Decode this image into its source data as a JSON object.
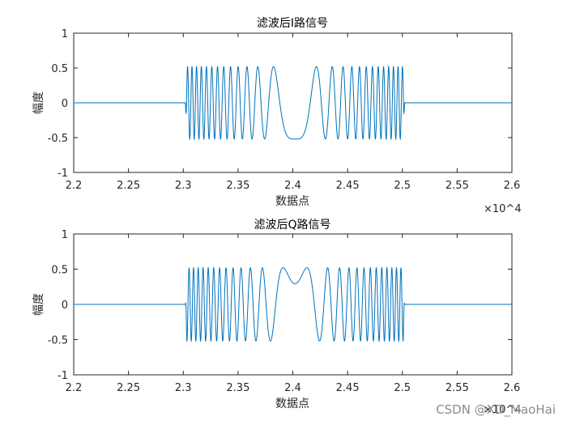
{
  "watermark": "CSDN @XD_MaoHai",
  "chart_data": [
    {
      "type": "line",
      "title": "滤波后I路信号",
      "xlabel": "数据点",
      "ylabel": "幅度",
      "xlim": [
        22000,
        26000
      ],
      "ylim": [
        -1,
        1
      ],
      "x_ticks": [
        22000,
        22500,
        23000,
        23500,
        24000,
        24500,
        25000,
        25500,
        26000
      ],
      "x_tick_labels": [
        "2.2",
        "2.25",
        "2.3",
        "2.35",
        "2.4",
        "2.45",
        "2.5",
        "2.55",
        "2.6"
      ],
      "x_exponent": "×10^4",
      "y_ticks": [
        -1,
        -0.5,
        0,
        0.5,
        1
      ],
      "y_tick_labels": [
        "-1",
        "-0.5",
        "0",
        "0.5",
        "1"
      ],
      "series_color": "#0072BD",
      "signal": {
        "active_start": 23020,
        "active_end": 25020,
        "amplitude": 0.52,
        "component": "I",
        "description": "chirp bursts, period slowing toward center dip at 24000"
      },
      "grid": false
    },
    {
      "type": "line",
      "title": "滤波后Q路信号",
      "xlabel": "数据点",
      "ylabel": "幅度",
      "xlim": [
        22000,
        26000
      ],
      "ylim": [
        -1,
        1
      ],
      "x_ticks": [
        22000,
        22500,
        23000,
        23500,
        24000,
        24500,
        25000,
        25500,
        26000
      ],
      "x_tick_labels": [
        "2.2",
        "2.25",
        "2.3",
        "2.35",
        "2.4",
        "2.45",
        "2.5",
        "2.55",
        "2.6"
      ],
      "x_exponent": "×10^4",
      "y_ticks": [
        -1,
        -0.5,
        0,
        0.5,
        1
      ],
      "y_tick_labels": [
        "-1",
        "-0.5",
        "0",
        "0.5",
        "1"
      ],
      "series_color": "#0072BD",
      "signal": {
        "active_start": 23020,
        "active_end": 25020,
        "amplitude": 0.52,
        "component": "Q",
        "description": "chirp bursts, period slowing toward center hump at 24000"
      },
      "grid": false
    }
  ]
}
